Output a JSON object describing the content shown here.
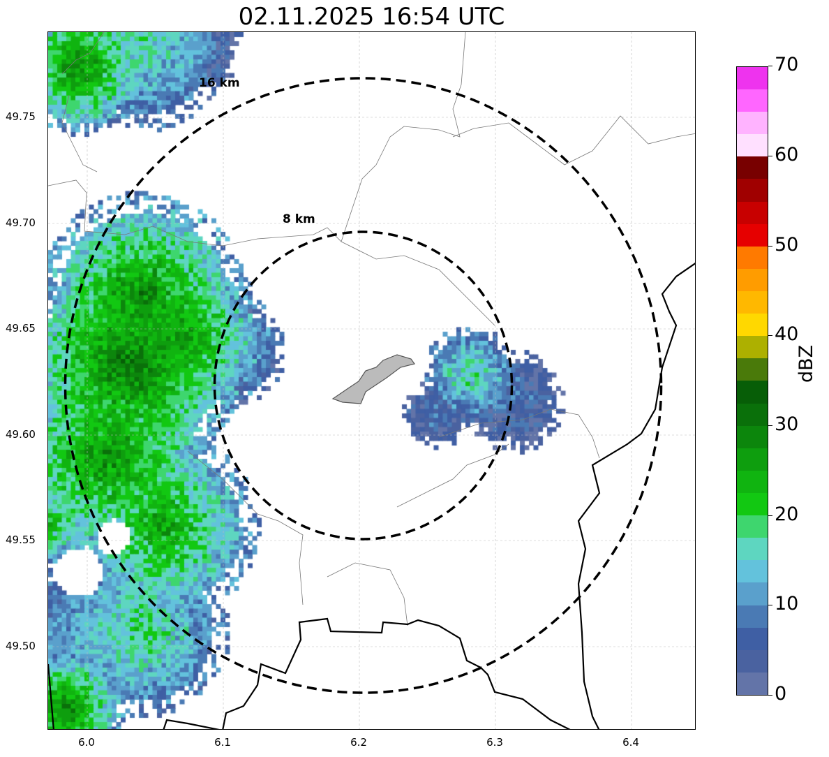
{
  "title": "02.11.2025 16:54 UTC",
  "map": {
    "lon_range": [
      5.971,
      6.447
    ],
    "lat_range": [
      49.461,
      49.79
    ],
    "x_ticks": [
      "6.0",
      "6.1",
      "6.2",
      "6.3",
      "6.4"
    ],
    "y_ticks": [
      "49.75",
      "49.70",
      "49.65",
      "49.60",
      "49.55",
      "49.50"
    ],
    "rings": [
      {
        "label": "8 km",
        "radius_km": 8
      },
      {
        "label": "16 km",
        "radius_km": 16
      }
    ]
  },
  "colorbar": {
    "label": "dBZ",
    "min": 0,
    "max": 70,
    "step": 2.5,
    "tick_labels": [
      "0",
      "10",
      "20",
      "30",
      "40",
      "50",
      "60",
      "70"
    ],
    "colors": [
      "#6374a8",
      "#4a62a0",
      "#3f5fa4",
      "#4a7ab4",
      "#5aa0cc",
      "#63c2dc",
      "#5ed6c0",
      "#3ed66e",
      "#12c812",
      "#10b410",
      "#0e9e0e",
      "#0c860c",
      "#0a700a",
      "#075e07",
      "#4a7a0a",
      "#adb000",
      "#ffd800",
      "#ffb800",
      "#ff9c00",
      "#ff7a00",
      "#e60000",
      "#c80000",
      "#a00000",
      "#780000",
      "#ffe0ff",
      "#ffb3ff",
      "#ff66ff",
      "#ee33ee"
    ]
  }
}
